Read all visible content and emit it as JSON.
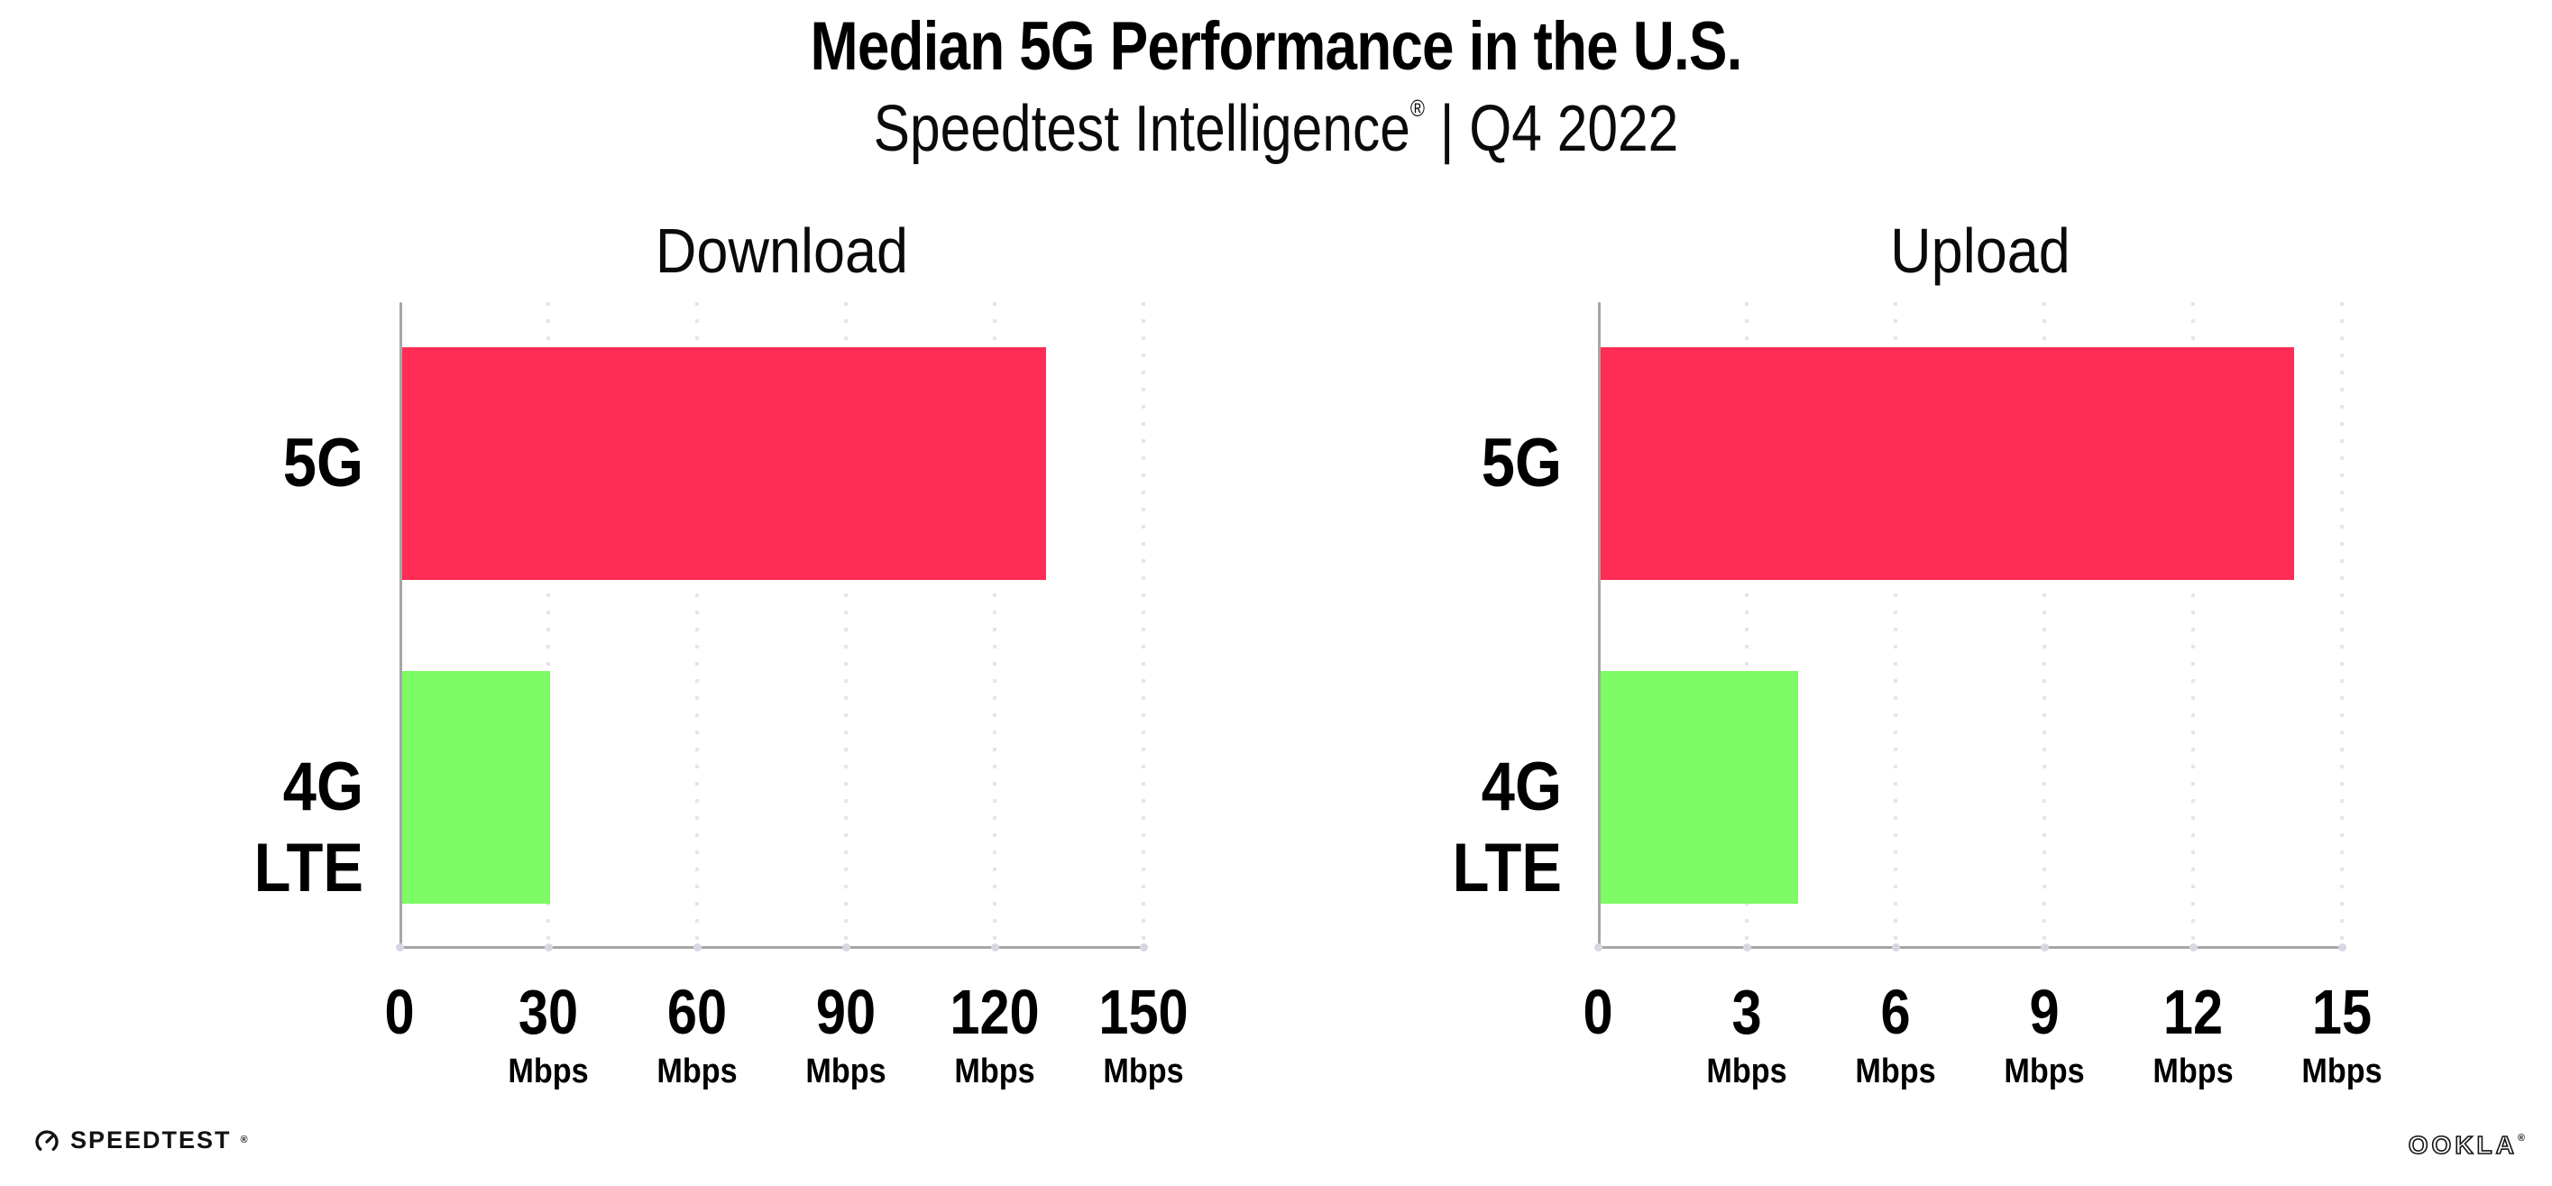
{
  "page": {
    "background": "#FFFFFF"
  },
  "header": {
    "title": "Median 5G Performance in the U.S.",
    "subtitle": {
      "brand": "Speedtest Intelligence",
      "registered_mark": "®",
      "separator": " | ",
      "period": "Q4 2022"
    }
  },
  "chart_data": [
    {
      "type": "bar",
      "orientation": "horizontal",
      "title": "Download",
      "categories": [
        "5G",
        "4G LTE"
      ],
      "values": [
        130,
        30
      ],
      "unit": "Mbps",
      "xlabel": "",
      "ylabel": "",
      "xlim": [
        0,
        150
      ],
      "xticks": [
        0,
        30,
        60,
        90,
        120,
        150
      ],
      "bar_colors": [
        "#FF2D55",
        "#7DFC66"
      ],
      "grid": "dotted-vertical",
      "legend": "none"
    },
    {
      "type": "bar",
      "orientation": "horizontal",
      "title": "Upload",
      "categories": [
        "5G",
        "4G LTE"
      ],
      "values": [
        14,
        4
      ],
      "unit": "Mbps",
      "xlabel": "",
      "ylabel": "",
      "xlim": [
        0,
        15
      ],
      "xticks": [
        0,
        3,
        6,
        9,
        12,
        15
      ],
      "bar_colors": [
        "#FF2D55",
        "#7DFC66"
      ],
      "grid": "dotted-vertical",
      "legend": "none"
    }
  ],
  "footer": {
    "speedtest": {
      "icon": "speedtest-gauge-icon",
      "label": "SPEEDTEST",
      "mark": "®"
    },
    "ookla": {
      "label": "OOKLA",
      "mark": "®"
    }
  },
  "colors": {
    "bar_5g": "#FF2D55",
    "bar_4g_lte": "#7DFC66",
    "axis": "#A6A6A6",
    "gridline": "#E4E4EF",
    "tick_dot": "#D6D6E4",
    "text": "#000000",
    "logo": "#121212"
  }
}
